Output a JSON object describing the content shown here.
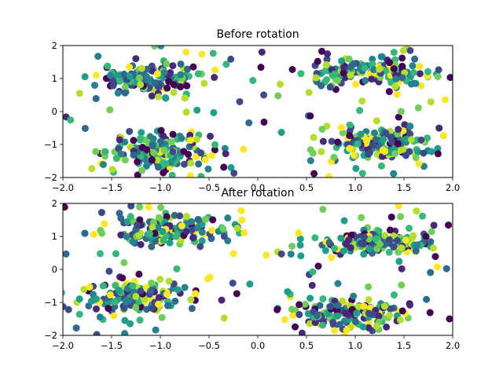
{
  "chart_data": [
    {
      "type": "scatter",
      "title": "Before rotation",
      "xlim": [
        -2,
        2
      ],
      "ylim": [
        -2,
        2
      ],
      "xticks": [
        "−2.0",
        "−1.5",
        "−1.0",
        "−0.5",
        "0.0",
        "0.5",
        "1.0",
        "1.5",
        "2.0"
      ],
      "yticks": [
        "−2",
        "−1",
        "0",
        "1",
        "2"
      ],
      "grid": false,
      "colormap": "viridis",
      "clusters": [
        {
          "center": [
            -1.1,
            1.0
          ],
          "spread": [
            0.28,
            0.22
          ]
        },
        {
          "center": [
            1.15,
            1.15
          ],
          "spread": [
            0.32,
            0.2
          ]
        },
        {
          "center": [
            -1.0,
            -1.2
          ],
          "spread": [
            0.26,
            0.28
          ]
        },
        {
          "center": [
            1.25,
            -1.0
          ],
          "spread": [
            0.28,
            0.3
          ]
        }
      ],
      "points_per_cluster": 150,
      "background_points": 110
    },
    {
      "type": "scatter",
      "title": "After rotation",
      "xlim": [
        -2,
        2
      ],
      "ylim": [
        -2,
        2
      ],
      "xticks": [
        "−2.0",
        "−1.5",
        "−1.0",
        "−0.5",
        "0.0",
        "0.5",
        "1.0",
        "1.5",
        "2.0"
      ],
      "yticks": [
        "−2",
        "−1",
        "0",
        "1",
        "2"
      ],
      "grid": false,
      "colormap": "viridis",
      "clusters": [
        {
          "center": [
            -0.9,
            1.2
          ],
          "spread": [
            0.3,
            0.22
          ]
        },
        {
          "center": [
            1.2,
            0.85
          ],
          "spread": [
            0.3,
            0.2
          ]
        },
        {
          "center": [
            -1.25,
            -0.85
          ],
          "spread": [
            0.28,
            0.24
          ]
        },
        {
          "center": [
            0.95,
            -1.35
          ],
          "spread": [
            0.3,
            0.25
          ]
        }
      ],
      "points_per_cluster": 150,
      "background_points": 100
    }
  ]
}
